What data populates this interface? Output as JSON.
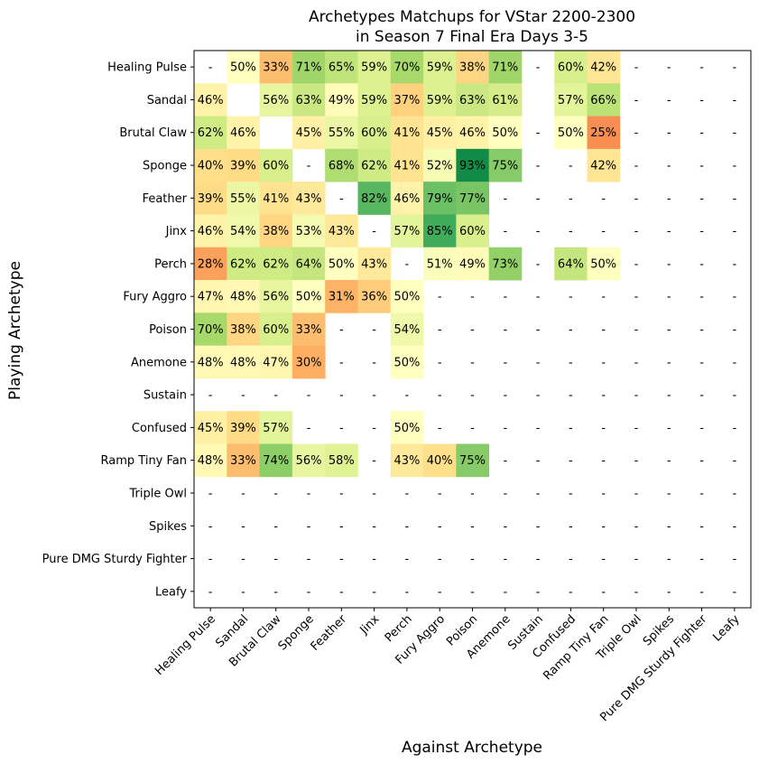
{
  "chart_data": {
    "type": "heatmap",
    "title_line1": "Archetypes Matchups for VStar 2200-2300",
    "title_line2": "in Season 7 Final Era Days 3-5",
    "xlabel": "Against Archetype",
    "ylabel": "Playing Archetype",
    "categories": [
      "Healing Pulse",
      "Sandal",
      "Brutal Claw",
      "Sponge",
      "Feather",
      "Jinx",
      "Perch",
      "Fury Aggro",
      "Poison",
      "Anemone",
      "Sustain",
      "Confused",
      "Ramp Tiny Fan",
      "Triple Owl",
      "Spikes",
      "Pure DMG Sturdy Fighter",
      "Leafy"
    ],
    "values": [
      [
        null,
        50,
        33,
        71,
        65,
        59,
        70,
        59,
        38,
        71,
        null,
        60,
        42,
        null,
        null,
        null,
        null
      ],
      [
        46,
        "",
        56,
        63,
        49,
        59,
        37,
        59,
        63,
        61,
        "",
        57,
        66,
        null,
        null,
        null,
        null
      ],
      [
        62,
        46,
        "",
        45,
        55,
        60,
        41,
        45,
        46,
        50,
        null,
        50,
        25,
        null,
        null,
        null,
        null
      ],
      [
        40,
        39,
        60,
        null,
        68,
        62,
        41,
        52,
        93,
        75,
        null,
        null,
        42,
        null,
        null,
        null,
        null
      ],
      [
        39,
        55,
        41,
        43,
        null,
        82,
        46,
        79,
        77,
        null,
        null,
        null,
        null,
        null,
        null,
        null,
        null
      ],
      [
        46,
        54,
        38,
        53,
        43,
        null,
        57,
        85,
        60,
        null,
        null,
        null,
        null,
        null,
        null,
        null,
        null
      ],
      [
        28,
        62,
        62,
        64,
        50,
        43,
        null,
        51,
        49,
        73,
        null,
        64,
        50,
        null,
        null,
        null,
        null
      ],
      [
        47,
        48,
        56,
        50,
        31,
        36,
        50,
        null,
        null,
        null,
        null,
        null,
        null,
        null,
        null,
        null,
        null
      ],
      [
        70,
        38,
        60,
        33,
        null,
        null,
        54,
        null,
        null,
        null,
        null,
        null,
        null,
        null,
        null,
        null,
        null
      ],
      [
        48,
        48,
        47,
        30,
        null,
        null,
        50,
        null,
        null,
        null,
        null,
        null,
        null,
        null,
        null,
        null,
        null
      ],
      [
        null,
        null,
        null,
        null,
        null,
        null,
        null,
        null,
        null,
        null,
        null,
        null,
        null,
        null,
        null,
        null,
        null
      ],
      [
        45,
        39,
        57,
        null,
        null,
        null,
        50,
        null,
        null,
        null,
        null,
        null,
        null,
        null,
        null,
        null,
        null
      ],
      [
        48,
        33,
        74,
        56,
        58,
        null,
        43,
        40,
        75,
        null,
        null,
        null,
        null,
        null,
        null,
        null,
        null
      ],
      [
        null,
        null,
        null,
        null,
        null,
        null,
        null,
        null,
        null,
        null,
        null,
        null,
        null,
        null,
        null,
        null,
        null
      ],
      [
        null,
        null,
        null,
        null,
        null,
        null,
        null,
        null,
        null,
        null,
        null,
        null,
        null,
        null,
        null,
        null,
        null
      ],
      [
        null,
        null,
        null,
        null,
        null,
        null,
        null,
        null,
        null,
        null,
        null,
        null,
        null,
        null,
        null,
        null,
        null
      ],
      [
        null,
        null,
        null,
        null,
        null,
        null,
        null,
        null,
        null,
        null,
        null,
        null,
        null,
        null,
        null,
        null,
        null
      ]
    ],
    "missing_label": "-",
    "value_suffix": "%",
    "colormap": "RdYlGn",
    "vmin": 0,
    "vmax": 100
  }
}
